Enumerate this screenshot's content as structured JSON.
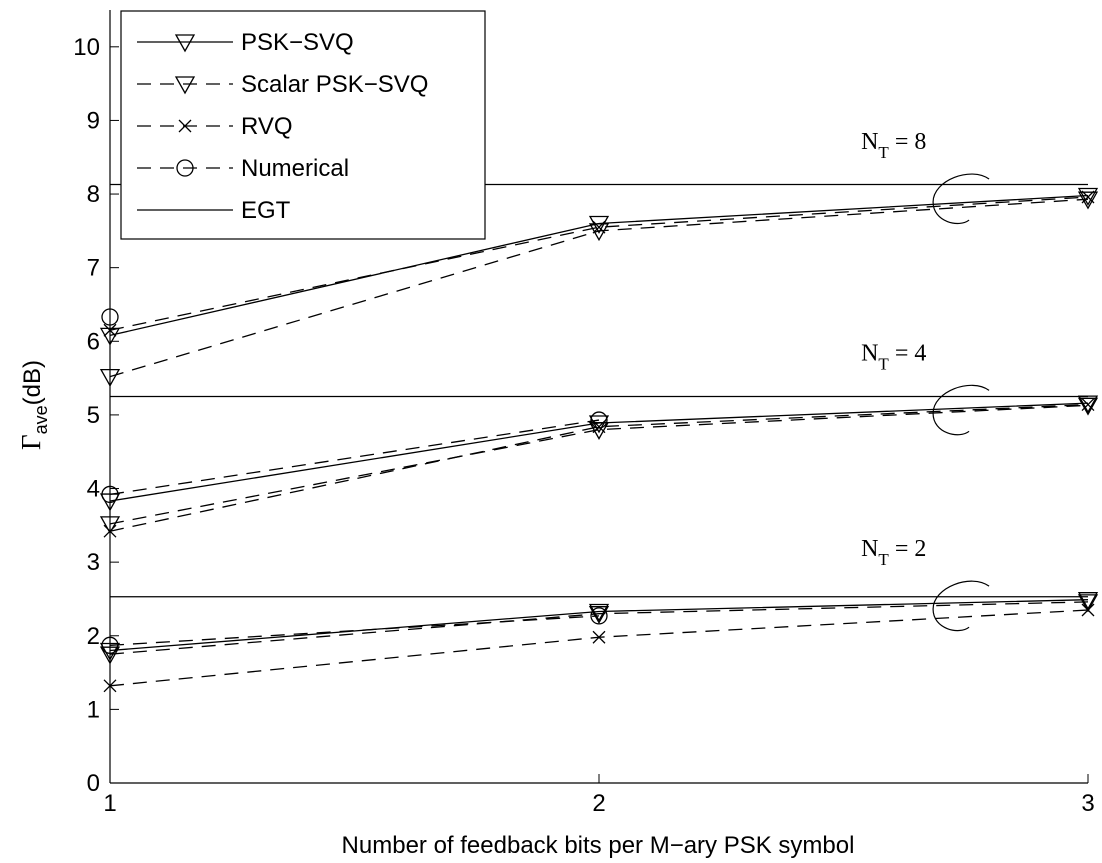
{
  "chart_data": {
    "type": "line",
    "xlabel": "Number of feedback bits per M−ary PSK symbol",
    "ylabel": {
      "main": "Γ",
      "sub": "ave",
      "rest": "(dB)"
    },
    "xlim": [
      1,
      3
    ],
    "ylim": [
      0,
      10.5
    ],
    "xticks": [
      1,
      2,
      3
    ],
    "yticks": [
      0,
      1,
      2,
      3,
      4,
      5,
      6,
      7,
      8,
      9,
      10
    ],
    "grid": false,
    "legend_position": "top-left",
    "legend": [
      {
        "label": "PSK−SVQ",
        "line": "solid",
        "marker": "triangle-down"
      },
      {
        "label": "Scalar PSK−SVQ",
        "line": "dashed",
        "marker": "triangle-down"
      },
      {
        "label": "RVQ",
        "line": "dashed",
        "marker": "x"
      },
      {
        "label": "Numerical",
        "line": "dashed",
        "marker": "circle"
      },
      {
        "label": "EGT",
        "line": "solid",
        "marker": "none"
      }
    ],
    "annotations": [
      {
        "main": "N",
        "sub": "T",
        "rest": " = 8",
        "x": 2.72,
        "y": 8.0
      },
      {
        "main": "N",
        "sub": "T",
        "rest": " = 4",
        "x": 2.72,
        "y": 5.13
      },
      {
        "main": "N",
        "sub": "T",
        "rest": " = 2",
        "x": 2.72,
        "y": 2.47
      }
    ],
    "series": [
      {
        "name": "PSK−SVQ",
        "group": "N_T = 8",
        "line": "solid",
        "marker": "triangle-down",
        "x": [
          1,
          2,
          3
        ],
        "y": [
          6.08,
          7.6,
          7.98
        ]
      },
      {
        "name": "Scalar PSK−SVQ",
        "group": "N_T = 8",
        "line": "dashed",
        "marker": "triangle-down",
        "x": [
          1,
          2,
          3
        ],
        "y": [
          5.52,
          7.5,
          7.93
        ]
      },
      {
        "name": "RVQ",
        "group": "N_T = 8",
        "line": "dashed",
        "marker": "x",
        "x": [
          1,
          2,
          3
        ],
        "y": [
          6.15,
          7.55,
          7.96
        ]
      },
      {
        "name": "Numerical",
        "group": "N_T = 8",
        "line": "dashed",
        "marker": "circle",
        "x": [
          1
        ],
        "y": [
          6.33
        ]
      },
      {
        "name": "EGT",
        "group": "N_T = 8",
        "line": "solid",
        "marker": "none",
        "x": [
          1,
          3
        ],
        "y": [
          8.13,
          8.13
        ]
      },
      {
        "name": "PSK−SVQ",
        "group": "N_T = 4",
        "line": "solid",
        "marker": "triangle-down",
        "x": [
          1,
          2,
          3
        ],
        "y": [
          3.83,
          4.89,
          5.16
        ]
      },
      {
        "name": "Scalar PSK−SVQ",
        "group": "N_T = 4",
        "line": "dashed",
        "marker": "triangle-down",
        "x": [
          1,
          2,
          3
        ],
        "y": [
          3.52,
          4.8,
          5.13
        ]
      },
      {
        "name": "RVQ",
        "group": "N_T = 4",
        "line": "dashed",
        "marker": "x",
        "x": [
          1,
          2,
          3
        ],
        "y": [
          3.42,
          4.84,
          5.14
        ]
      },
      {
        "name": "Numerical",
        "group": "N_T = 4",
        "line": "dashed",
        "marker": "circle",
        "x": [
          1,
          2
        ],
        "y": [
          3.92,
          4.93
        ]
      },
      {
        "name": "EGT",
        "group": "N_T = 4",
        "line": "solid",
        "marker": "none",
        "x": [
          1,
          3
        ],
        "y": [
          5.25,
          5.25
        ]
      },
      {
        "name": "PSK−SVQ",
        "group": "N_T = 2",
        "line": "solid",
        "marker": "triangle-down",
        "x": [
          1,
          2,
          3
        ],
        "y": [
          1.8,
          2.33,
          2.49
        ]
      },
      {
        "name": "Scalar PSK−SVQ",
        "group": "N_T = 2",
        "line": "dashed",
        "marker": "triangle-down",
        "x": [
          1,
          2,
          3
        ],
        "y": [
          1.75,
          2.3,
          2.46
        ]
      },
      {
        "name": "RVQ",
        "group": "N_T = 2",
        "line": "dashed",
        "marker": "x",
        "x": [
          1,
          2,
          3
        ],
        "y": [
          1.32,
          1.98,
          2.35
        ]
      },
      {
        "name": "Numerical",
        "group": "N_T = 2",
        "line": "dashed",
        "marker": "circle",
        "x": [
          1,
          2
        ],
        "y": [
          1.87,
          2.27
        ]
      },
      {
        "name": "EGT",
        "group": "N_T = 2",
        "line": "solid",
        "marker": "none",
        "x": [
          1,
          3
        ],
        "y": [
          2.53,
          2.53
        ]
      }
    ]
  }
}
